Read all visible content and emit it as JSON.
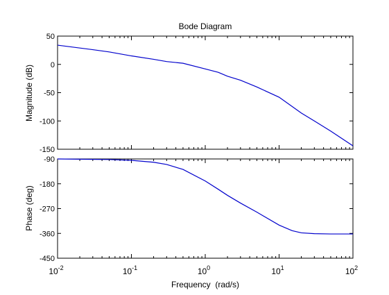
{
  "chart_data": {
    "type": "line",
    "title": "Bode Diagram",
    "xlabel": "Frequency  (rad/s)",
    "x_scale": "log",
    "xlim": [
      0.01,
      100
    ],
    "x_ticks": [
      0.01,
      0.1,
      1,
      10,
      100
    ],
    "x_tick_labels": [
      {
        "base": "10",
        "exp": "-2"
      },
      {
        "base": "10",
        "exp": "-1"
      },
      {
        "base": "10",
        "exp": "0"
      },
      {
        "base": "10",
        "exp": "1"
      },
      {
        "base": "10",
        "exp": "2"
      }
    ],
    "line_color": "#0000cc",
    "grid": false,
    "panels": [
      {
        "id": "magnitude",
        "ylabel": "Magnitude (dB)",
        "ylim": [
          -150,
          50
        ],
        "y_ticks": [
          50,
          0,
          -50,
          -100,
          -150
        ],
        "y_tick_labels": [
          "50",
          "0",
          "-50",
          "-100",
          "-150"
        ],
        "series": [
          {
            "x": [
              0.01,
              0.03,
              0.05,
              0.1,
              0.2,
              0.3,
              0.5,
              1,
              1.5,
              2,
              3,
              5,
              10,
              20,
              30,
              50,
              100
            ],
            "y": [
              34,
              26,
              22,
              15,
              9,
              5,
              2,
              -8,
              -14,
              -21,
              -28,
              -40,
              -58,
              -86,
              -100,
              -118,
              -144
            ]
          }
        ]
      },
      {
        "id": "phase",
        "ylabel": "Phase (deg)",
        "ylim": [
          -450,
          -90
        ],
        "y_ticks": [
          -90,
          -180,
          -270,
          -360,
          -450
        ],
        "y_tick_labels": [
          "-90",
          "-180",
          "-270",
          "-360",
          "-450"
        ],
        "series": [
          {
            "x": [
              0.01,
              0.05,
              0.1,
              0.2,
              0.3,
              0.5,
              1,
              1.5,
              2,
              3,
              5,
              10,
              15,
              20,
              30,
              50,
              100
            ],
            "y": [
              -90,
              -92,
              -95,
              -102,
              -110,
              -128,
              -170,
              -200,
              -222,
              -250,
              -283,
              -330,
              -350,
              -358,
              -361,
              -362,
              -362
            ]
          }
        ]
      }
    ]
  }
}
